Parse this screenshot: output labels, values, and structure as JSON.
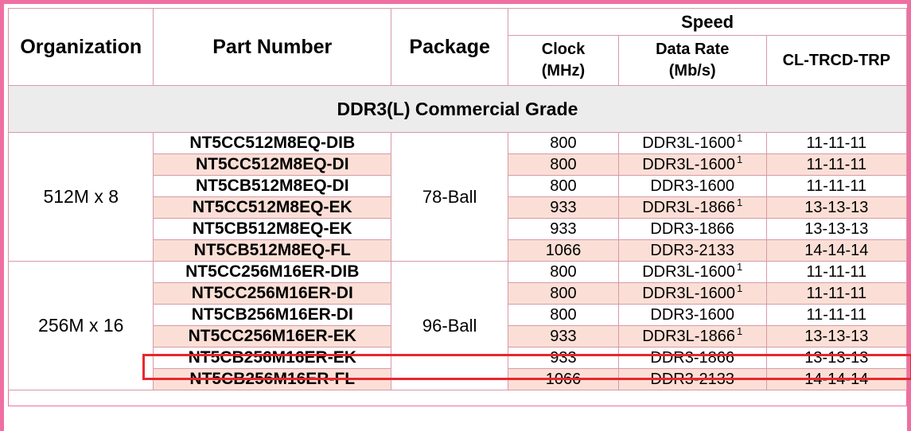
{
  "header": {
    "organization": "Organization",
    "part_number": "Part Number",
    "package": "Package",
    "speed": "Speed",
    "clock_line1": "Clock",
    "clock_line2": "(MHz)",
    "datarate_line1": "Data Rate",
    "datarate_line2": "(Mb/s)",
    "timing": "CL-TRCD-TRP"
  },
  "grade_label": "DDR3(L) Commercial Grade",
  "groups": [
    {
      "organization": "512M x 8",
      "package": "78-Ball",
      "rows": [
        {
          "part": "NT5CC512M8EQ-DIB",
          "clock": "800",
          "rate": "DDR3L-1600",
          "note": "1",
          "timing": "11-11-11"
        },
        {
          "part": "NT5CC512M8EQ-DI",
          "clock": "800",
          "rate": "DDR3L-1600",
          "note": "1",
          "timing": "11-11-11"
        },
        {
          "part": "NT5CB512M8EQ-DI",
          "clock": "800",
          "rate": "DDR3-1600",
          "note": "",
          "timing": "11-11-11"
        },
        {
          "part": "NT5CC512M8EQ-EK",
          "clock": "933",
          "rate": "DDR3L-1866",
          "note": "1",
          "timing": "13-13-13"
        },
        {
          "part": "NT5CB512M8EQ-EK",
          "clock": "933",
          "rate": "DDR3-1866",
          "note": "",
          "timing": "13-13-13"
        },
        {
          "part": "NT5CB512M8EQ-FL",
          "clock": "1066",
          "rate": "DDR3-2133",
          "note": "",
          "timing": "14-14-14"
        }
      ]
    },
    {
      "organization": "256M x 16",
      "package": "96-Ball",
      "rows": [
        {
          "part": "NT5CC256M16ER-DIB",
          "clock": "800",
          "rate": "DDR3L-1600",
          "note": "1",
          "timing": "11-11-11"
        },
        {
          "part": "NT5CC256M16ER-DI",
          "clock": "800",
          "rate": "DDR3L-1600",
          "note": "1",
          "timing": "11-11-11"
        },
        {
          "part": "NT5CB256M16ER-DI",
          "clock": "800",
          "rate": "DDR3-1600",
          "note": "",
          "timing": "11-11-11"
        },
        {
          "part": "NT5CC256M16ER-EK",
          "clock": "933",
          "rate": "DDR3L-1866",
          "note": "1",
          "timing": "13-13-13"
        },
        {
          "part": "NT5CB256M16ER-EK",
          "clock": "933",
          "rate": "DDR3-1866",
          "note": "",
          "timing": "13-13-13"
        },
        {
          "part": "NT5CB256M16ER-FL",
          "clock": "1066",
          "rate": "DDR3-2133",
          "note": "",
          "timing": "14-14-14"
        }
      ]
    }
  ],
  "colors": {
    "frame_border": "#f06fa3",
    "row_shade": "#fbdfd6",
    "grade_band": "#ececec",
    "highlight_box": "#e8272f"
  },
  "highlighted_part": "NT5CC256M16ER-EK"
}
